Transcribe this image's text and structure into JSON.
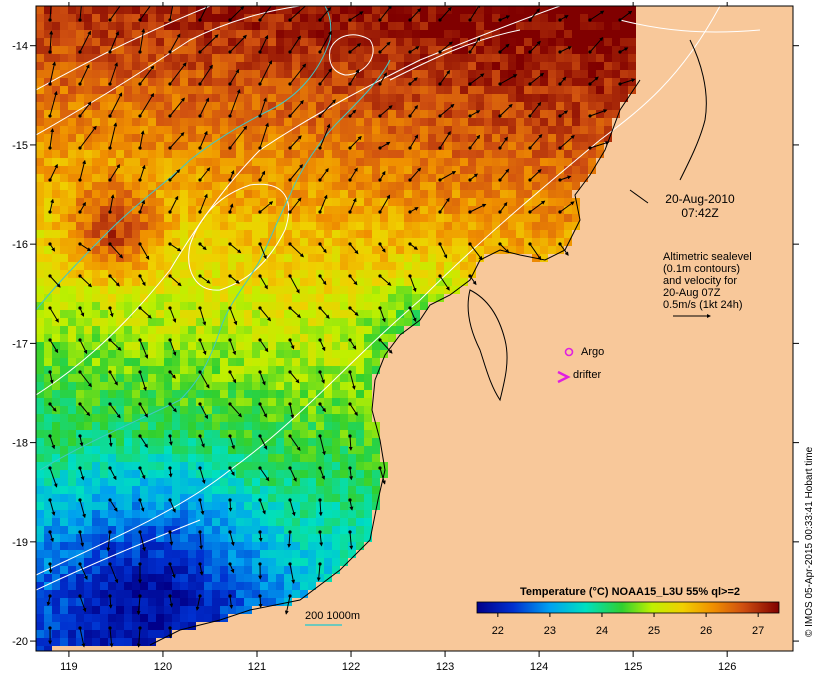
{
  "map": {
    "date": "20-Aug-2010",
    "time": "07:42Z",
    "legend_lines": [
      "Altimetric sealevel",
      "(0.1m contours)",
      "and velocity for",
      "20-Aug 07Z",
      "0.5m/s (1kt 24h)"
    ],
    "argo_label": "Argo",
    "drifter_label": "drifter",
    "depth_label": "200  1000m",
    "credit": "© IMOS 05-Apr-2015 00:33:41 Hobart time",
    "lon_ticks": [
      119,
      120,
      121,
      122,
      123,
      124,
      125,
      126
    ],
    "lat_ticks": [
      -14,
      -15,
      -16,
      -17,
      -18,
      -19,
      -20
    ],
    "lon_range": [
      118.65,
      126.7
    ],
    "lat_range": [
      -20.1,
      -13.6
    ],
    "colorbar": {
      "title": "Temperature (°C) NOAA15_L3U 55% ql>=2",
      "ticks": [
        22,
        23,
        24,
        25,
        26,
        27
      ],
      "range": [
        21.6,
        27.4
      ]
    },
    "colors": {
      "land": "#f8c89a",
      "contour": "#ffffff",
      "isobath": "#40c8c8",
      "argo": "#e020e0",
      "drifter": "#e020e0"
    }
  }
}
